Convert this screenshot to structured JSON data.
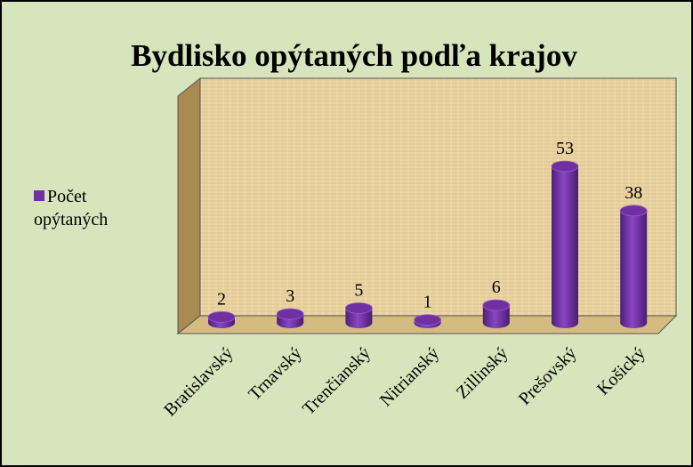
{
  "chart_data": {
    "type": "bar3d",
    "title": "Bydlisko opýtaných podľa krajov",
    "categories": [
      "Bratislavský",
      "Trnavský",
      "Trenčianský",
      "Nitrianský",
      "Zillinský",
      "Prešovský",
      "Košický"
    ],
    "series": [
      {
        "name": "Počet opýtaných",
        "color": "#7030a0",
        "values": [
          2,
          3,
          5,
          1,
          6,
          53,
          38
        ]
      }
    ],
    "legend": "left"
  }
}
